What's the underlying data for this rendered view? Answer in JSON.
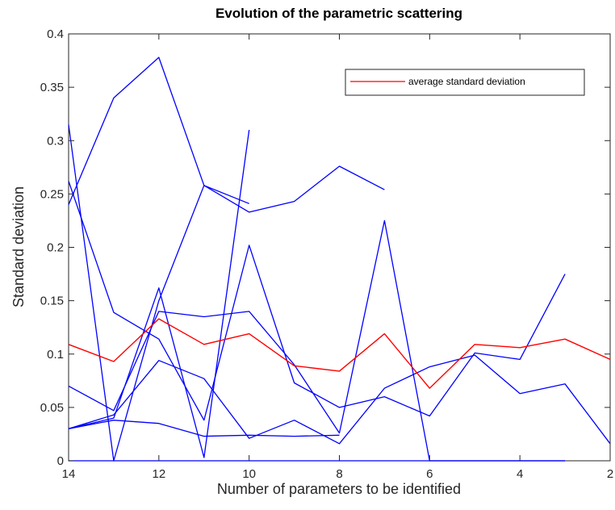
{
  "chart_data": {
    "type": "line",
    "title": "Evolution of the parametric scattering",
    "xlabel": "Number of parameters to be identified",
    "ylabel": "Standard deviation",
    "xlim": [
      2,
      14
    ],
    "x_reversed": true,
    "ylim": [
      0,
      0.4
    ],
    "xticks": [
      "14",
      "12",
      "10",
      "8",
      "6",
      "4",
      "2"
    ],
    "yticks": [
      "0",
      "0.05",
      "0.1",
      "0.15",
      "0.2",
      "0.25",
      "0.3",
      "0.35",
      "0.4"
    ],
    "grid": false,
    "legend": {
      "placement": "top-right",
      "entries": [
        "average standard deviation"
      ]
    },
    "colors": {
      "series": "#0000ff",
      "average": "#ff0000"
    },
    "series": [
      {
        "color": "#0000ff",
        "points": [
          [
            14,
            0.24
          ],
          [
            13,
            0.34
          ],
          [
            12,
            0.378
          ],
          [
            11,
            0.258
          ],
          [
            10,
            0.241
          ]
        ]
      },
      {
        "color": "#0000ff",
        "points": [
          [
            14,
            0.315
          ],
          [
            13,
            0.0
          ],
          [
            12,
            0.15
          ],
          [
            11,
            0.258
          ],
          [
            10,
            0.233
          ],
          [
            9,
            0.243
          ],
          [
            8,
            0.276
          ],
          [
            7,
            0.254
          ]
        ]
      },
      {
        "color": "#0000ff",
        "points": [
          [
            14,
            0.262
          ],
          [
            13,
            0.139
          ],
          [
            12,
            0.114
          ],
          [
            11,
            0.038
          ],
          [
            10,
            0.202
          ],
          [
            9,
            0.073
          ],
          [
            8,
            0.05
          ],
          [
            7,
            0.06
          ],
          [
            6,
            0.042
          ],
          [
            5,
            0.101
          ],
          [
            4,
            0.095
          ],
          [
            3,
            0.175
          ]
        ]
      },
      {
        "color": "#0000ff",
        "points": [
          [
            14,
            0.03
          ],
          [
            13,
            0.04
          ],
          [
            12,
            0.162
          ],
          [
            11,
            0.003
          ],
          [
            10,
            0.31
          ]
        ]
      },
      {
        "color": "#0000ff",
        "points": [
          [
            14,
            0.03
          ],
          [
            13,
            0.043
          ],
          [
            12,
            0.094
          ],
          [
            11,
            0.077
          ],
          [
            10,
            0.021
          ],
          [
            9,
            0.038
          ],
          [
            8,
            0.016
          ],
          [
            7,
            0.068
          ],
          [
            6,
            0.088
          ],
          [
            5,
            0.099
          ],
          [
            4,
            0.063
          ],
          [
            3,
            0.072
          ],
          [
            2,
            0.016
          ]
        ]
      },
      {
        "color": "#0000ff",
        "points": [
          [
            14,
            0.07
          ],
          [
            13,
            0.047
          ],
          [
            12,
            0.14
          ],
          [
            11,
            0.135
          ],
          [
            10,
            0.14
          ],
          [
            9,
            0.09
          ],
          [
            8,
            0.026
          ],
          [
            7,
            0.225
          ],
          [
            6,
            0.0
          ],
          [
            5,
            0.0
          ],
          [
            4,
            0.0
          ],
          [
            3,
            0.0
          ]
        ]
      },
      {
        "color": "#0000ff",
        "points": [
          [
            14,
            0.03
          ],
          [
            13,
            0.038
          ],
          [
            12,
            0.035
          ],
          [
            11,
            0.023
          ],
          [
            10,
            0.024
          ],
          [
            9,
            0.023
          ],
          [
            8,
            0.024
          ]
        ]
      },
      {
        "color": "#0000ff",
        "points": [
          [
            14,
            0.0
          ],
          [
            13,
            0.0
          ],
          [
            12,
            0.0
          ],
          [
            11,
            0.0
          ],
          [
            10,
            0.0
          ],
          [
            9,
            0.0
          ],
          [
            8,
            0.0
          ],
          [
            7,
            0.0
          ],
          [
            6,
            0.0
          ],
          [
            5,
            0.0
          ],
          [
            4,
            0.0
          ],
          [
            3,
            0.0
          ]
        ]
      },
      {
        "name": "average standard deviation",
        "color": "#ff0000",
        "points": [
          [
            14,
            0.109
          ],
          [
            13,
            0.093
          ],
          [
            12,
            0.133
          ],
          [
            11,
            0.109
          ],
          [
            10,
            0.119
          ],
          [
            9,
            0.089
          ],
          [
            8,
            0.084
          ],
          [
            7,
            0.119
          ],
          [
            6,
            0.068
          ],
          [
            5,
            0.109
          ],
          [
            4,
            0.106
          ],
          [
            3,
            0.114
          ],
          [
            2,
            0.095
          ]
        ]
      }
    ]
  }
}
